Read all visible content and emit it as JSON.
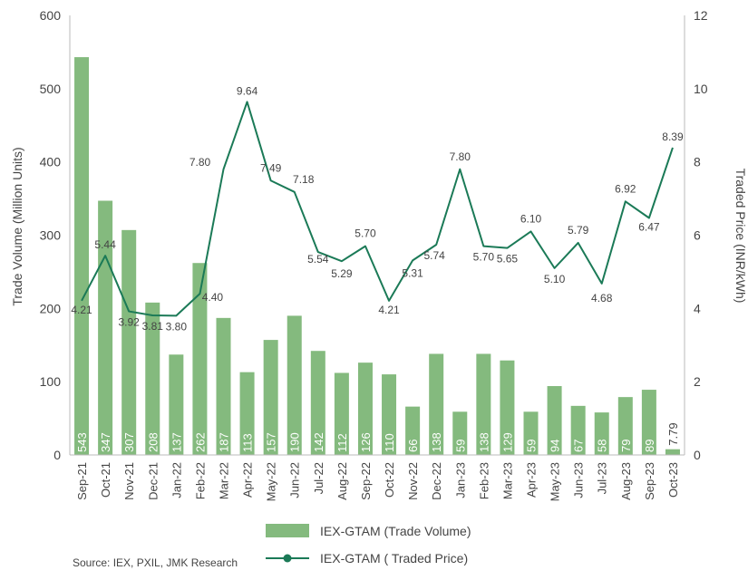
{
  "chart_data": {
    "type": "bar",
    "categories": [
      "Sep-21",
      "Oct-21",
      "Nov-21",
      "Dec-21",
      "Jan-22",
      "Feb-22",
      "Mar-22",
      "Apr-22",
      "May-22",
      "Jun-22",
      "Jul-22",
      "Aug-22",
      "Sep-22",
      "Oct-22",
      "Nov-22",
      "Dec-22",
      "Jan-23",
      "Feb-23",
      "Mar-23",
      "Apr-23",
      "May-23",
      "Jun-23",
      "Jul-23",
      "Aug-23",
      "Sep-23",
      "Oct-23"
    ],
    "series": [
      {
        "name": "IEX-GTAM (Trade Volume)",
        "kind": "bar",
        "axis": "left",
        "color": "#84ba7e",
        "values": [
          543,
          347,
          307,
          208,
          137,
          262,
          187,
          113,
          157,
          190,
          142,
          112,
          126,
          110,
          66,
          138,
          59,
          138,
          129,
          59,
          94,
          67,
          58,
          79,
          89,
          7.79
        ],
        "labels": [
          "543",
          "347",
          "307",
          "208",
          "137",
          "262",
          "187",
          "113",
          "157",
          "190",
          "142",
          "112",
          "126",
          "110",
          "66",
          "138",
          "59",
          "138",
          "129",
          "59",
          "94",
          "67",
          "58",
          "79",
          "89",
          "7.79"
        ]
      },
      {
        "name": "IEX-GTAM ( Traded Price)",
        "kind": "line",
        "axis": "right",
        "color": "#1b7a57",
        "values": [
          4.21,
          5.44,
          3.92,
          3.81,
          3.8,
          4.4,
          7.8,
          9.64,
          7.49,
          7.18,
          5.54,
          5.29,
          5.7,
          4.21,
          5.31,
          5.74,
          7.8,
          5.7,
          5.65,
          6.1,
          5.1,
          5.79,
          4.68,
          6.92,
          6.47,
          8.39
        ],
        "labels": [
          "4.21",
          "5.44",
          "3.92",
          "3.81",
          "3.80",
          "4.40",
          "7.80",
          "9.64",
          "7.49",
          "7.18",
          "5.54",
          "5.29",
          "5.70",
          "4.21",
          "5.31",
          "5.74",
          "7.80",
          "5.70",
          "5.65",
          "6.10",
          "5.10",
          "5.79",
          "4.68",
          "6.92",
          "6.47",
          "8.39"
        ]
      }
    ],
    "ylabel": "Trade Volume (Million Units)",
    "y2label": "Traded Price (INR/kWh)",
    "ylim": [
      0,
      600
    ],
    "y2lim": [
      0,
      12
    ],
    "yticks": [
      "0",
      "100",
      "200",
      "300",
      "400",
      "500",
      "600"
    ],
    "y2ticks": [
      "0",
      "2",
      "4",
      "6",
      "8",
      "10",
      "12"
    ],
    "grid": false,
    "legend": "bottom-center"
  },
  "source": "Source: IEX, PXIL, JMK Research"
}
